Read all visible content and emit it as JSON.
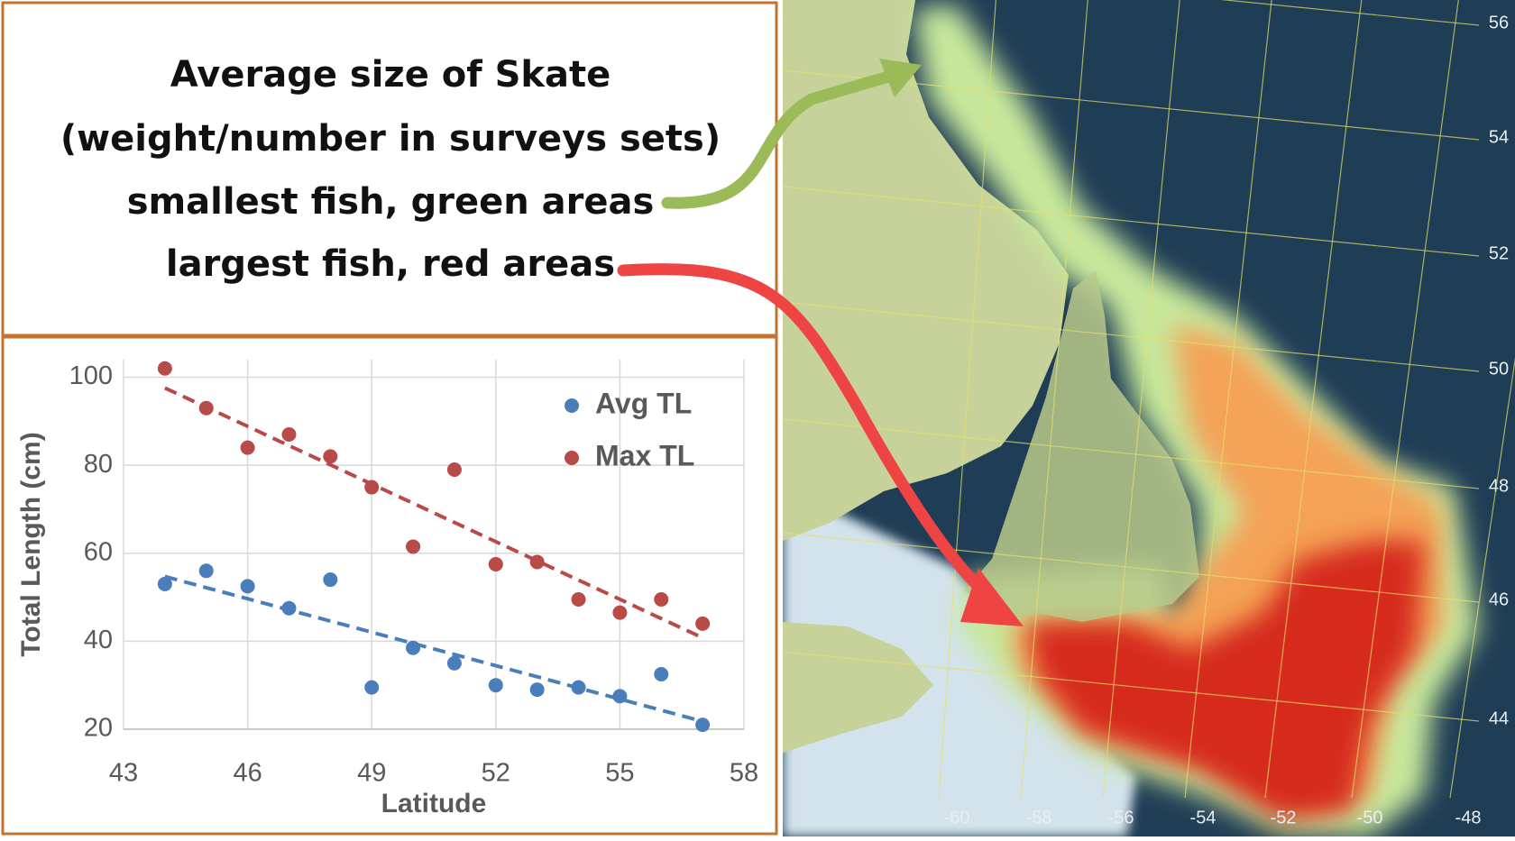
{
  "annotation": {
    "lines": [
      "Average size of Skate",
      "(weight/number in surveys sets)",
      "smallest fish, green areas",
      "largest fish, red areas"
    ]
  },
  "chart_data": {
    "type": "scatter",
    "x_label": "Latitude",
    "y_label": "Total Length (cm)",
    "x": [
      44,
      45,
      46,
      47,
      48,
      49,
      50,
      51,
      52,
      53,
      54,
      55,
      56,
      57
    ],
    "series": [
      {
        "name": "Avg TL",
        "color": "#4a7ebb",
        "values": [
          53,
          56,
          52.5,
          47.5,
          54,
          29.5,
          38.5,
          35,
          30,
          29,
          29.5,
          27.5,
          32.5,
          21
        ]
      },
      {
        "name": "Max TL",
        "color": "#b84a47",
        "values": [
          102,
          93,
          84,
          87,
          82,
          75,
          61.5,
          79,
          57.5,
          58,
          49.5,
          46.5,
          49.5,
          44
        ]
      }
    ],
    "trendline": true,
    "xlim": [
      43,
      58
    ],
    "xticks": [
      43,
      46,
      49,
      52,
      55,
      58
    ],
    "ylim": [
      20,
      104
    ],
    "yticks": [
      20,
      40,
      60,
      80,
      100
    ],
    "grid": true,
    "legend": "upper right"
  },
  "map": {
    "lat_labels": [
      "56",
      "54",
      "52",
      "50",
      "48",
      "46",
      "44"
    ],
    "lon_labels": [
      "-60",
      "-58",
      "-56",
      "-54",
      "-52",
      "-50",
      "-48"
    ]
  }
}
